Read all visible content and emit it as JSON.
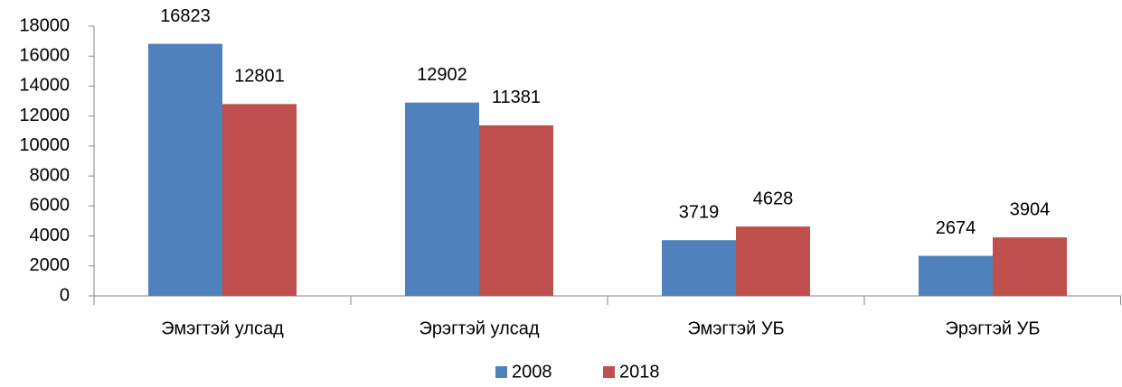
{
  "chart_data": {
    "type": "bar",
    "categories": [
      "Эмэгтэй улсад",
      "Эрэгтэй улсад",
      "Эмэгтэй УБ",
      "Эрэгтэй УБ"
    ],
    "series": [
      {
        "name": "2008",
        "color": "#4f81bd",
        "values": [
          16823,
          12902,
          3719,
          2674
        ]
      },
      {
        "name": "2018",
        "color": "#c0504d",
        "values": [
          12801,
          11381,
          4628,
          3904
        ]
      }
    ],
    "ylim": [
      0,
      18000
    ],
    "yticks": [
      0,
      2000,
      4000,
      6000,
      8000,
      10000,
      12000,
      14000,
      16000,
      18000
    ],
    "legend": "bottom"
  }
}
